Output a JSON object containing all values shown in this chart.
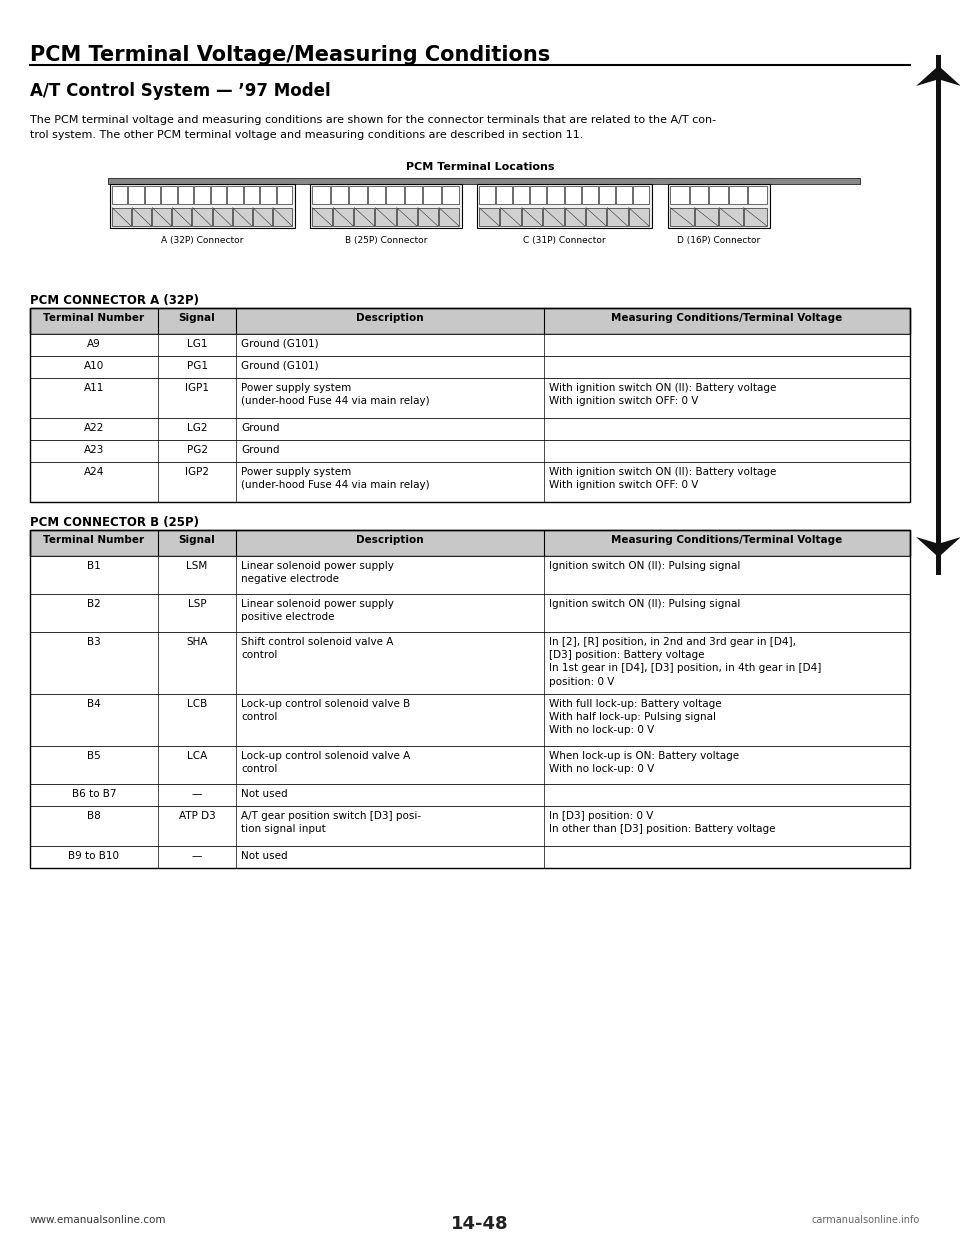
{
  "title": "PCM Terminal Voltage/Measuring Conditions",
  "subtitle": "A/T Control System — ’97 Model",
  "body_line1": "The PCM terminal voltage and measuring conditions are shown for the connector terminals that are related to the A/T con-",
  "body_line2": "trol system. The other PCM terminal voltage and measuring conditions are described in section 11.",
  "pcm_locations_title": "PCM Terminal Locations",
  "connector_labels": [
    "A (32P) Connector",
    "B (25P) Connector",
    "C (31P) Connector",
    "D (16P) Connector"
  ],
  "table_a_title": "PCM CONNECTOR A (32P)",
  "table_a_headers": [
    "Terminal Number",
    "Signal",
    "Description",
    "Measuring Conditions/Terminal Voltage"
  ],
  "table_a_rows": [
    [
      "A9",
      "LG1",
      "Ground (G101)",
      ""
    ],
    [
      "A10",
      "PG1",
      "Ground (G101)",
      ""
    ],
    [
      "A11",
      "IGP1",
      "Power supply system\n(under-hood Fuse 44 via main relay)",
      "With ignition switch ON (II): Battery voltage\nWith ignition switch OFF: 0 V"
    ],
    [
      "A22",
      "LG2",
      "Ground",
      ""
    ],
    [
      "A23",
      "PG2",
      "Ground",
      ""
    ],
    [
      "A24",
      "IGP2",
      "Power supply system\n(under-hood Fuse 44 via main relay)",
      "With ignition switch ON (II): Battery voltage\nWith ignition switch OFF: 0 V"
    ]
  ],
  "table_b_title": "PCM CONNECTOR B (25P)",
  "table_b_headers": [
    "Terminal Number",
    "Signal",
    "Description",
    "Measuring Conditions/Terminal Voltage"
  ],
  "table_b_rows": [
    [
      "B1",
      "LSM",
      "Linear solenoid power supply\nnegative electrode",
      "Ignition switch ON (II): Pulsing signal"
    ],
    [
      "B2",
      "LSP",
      "Linear solenoid power supply\npositive electrode",
      "Ignition switch ON (II): Pulsing signal"
    ],
    [
      "B3",
      "SHA",
      "Shift control solenoid valve A\ncontrol",
      "In [2], [R] position, in 2nd and 3rd gear in [D4],\n[D3] position: Battery voltage\nIn 1st gear in [D4], [D3] position, in 4th gear in [D4]\nposition: 0 V"
    ],
    [
      "B4",
      "LCB",
      "Lock-up control solenoid valve B\ncontrol",
      "With full lock-up: Battery voltage\nWith half lock-up: Pulsing signal\nWith no lock-up: 0 V"
    ],
    [
      "B5",
      "LCA",
      "Lock-up control solenoid valve A\ncontrol",
      "When lock-up is ON: Battery voltage\nWith no lock-up: 0 V"
    ],
    [
      "B6 to B7",
      "—",
      "Not used",
      ""
    ],
    [
      "B8",
      "ATP D3",
      "A/T gear position switch [D3] posi-\ntion signal input",
      "In [D3] position: 0 V\nIn other than [D3] position: Battery voltage"
    ],
    [
      "B9 to B10",
      "—",
      "Not used",
      ""
    ]
  ],
  "footer_left": "www.emanualsonline.com",
  "footer_page": "14-48",
  "footer_right": "carmanualsonline.info",
  "bg_color": "#ffffff",
  "header_bg": "#c8c8c8",
  "row_heights_a": [
    22,
    22,
    40,
    22,
    22,
    40
  ],
  "row_heights_b": [
    38,
    38,
    62,
    52,
    38,
    22,
    40,
    22
  ]
}
